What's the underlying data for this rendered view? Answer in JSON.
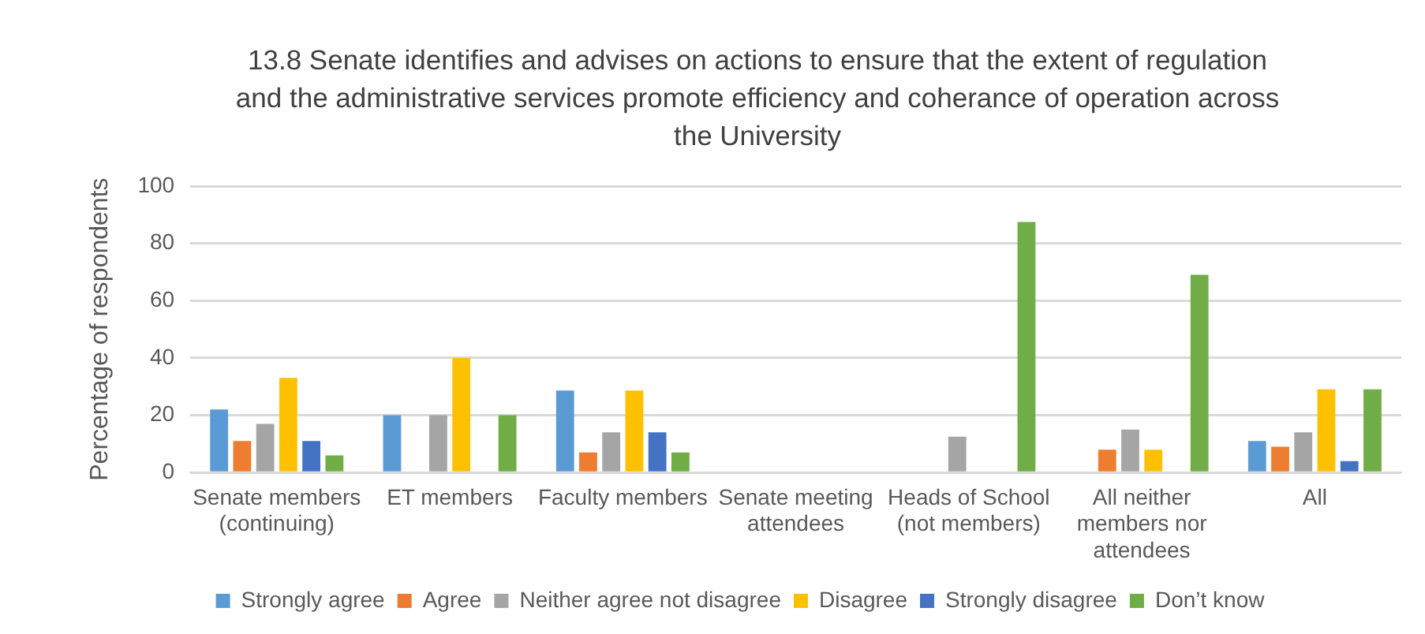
{
  "chart_data": {
    "type": "bar",
    "title": "13.8 Senate identifies and advises on actions to ensure that the extent of regulation and the administrative services promote efficiency and coherance of operation across the University",
    "ylabel": "Percentage of respondents",
    "categories": [
      "Senate members (continuing)",
      "ET members",
      "Faculty members",
      "Senate meeting attendees",
      "Heads of School (not members)",
      "All neither members nor attendees",
      "All"
    ],
    "series": [
      {
        "name": "Strongly agree",
        "color": "#5b9bd5",
        "values": [
          22,
          20,
          28.6,
          0,
          0,
          0,
          11
        ]
      },
      {
        "name": "Agree",
        "color": "#ed7d31",
        "values": [
          11,
          0,
          7,
          0,
          0,
          8,
          9
        ]
      },
      {
        "name": "Neither agree not disagree",
        "color": "#a5a5a5",
        "values": [
          17,
          20,
          14,
          0,
          12.5,
          15,
          14
        ]
      },
      {
        "name": "Disagree",
        "color": "#ffc000",
        "values": [
          33,
          40,
          28.6,
          0,
          0,
          8,
          29
        ]
      },
      {
        "name": "Strongly disagree",
        "color": "#4472c4",
        "values": [
          11,
          0,
          14,
          0,
          0,
          0,
          4
        ]
      },
      {
        "name": "Don’t know",
        "color": "#70ad47",
        "values": [
          6,
          20,
          7,
          0,
          87.5,
          69,
          29
        ]
      }
    ],
    "ylim": [
      0,
      100
    ],
    "yticks": [
      0,
      20,
      40,
      60,
      80,
      100
    ],
    "grid": "y",
    "legend": "bottom"
  }
}
